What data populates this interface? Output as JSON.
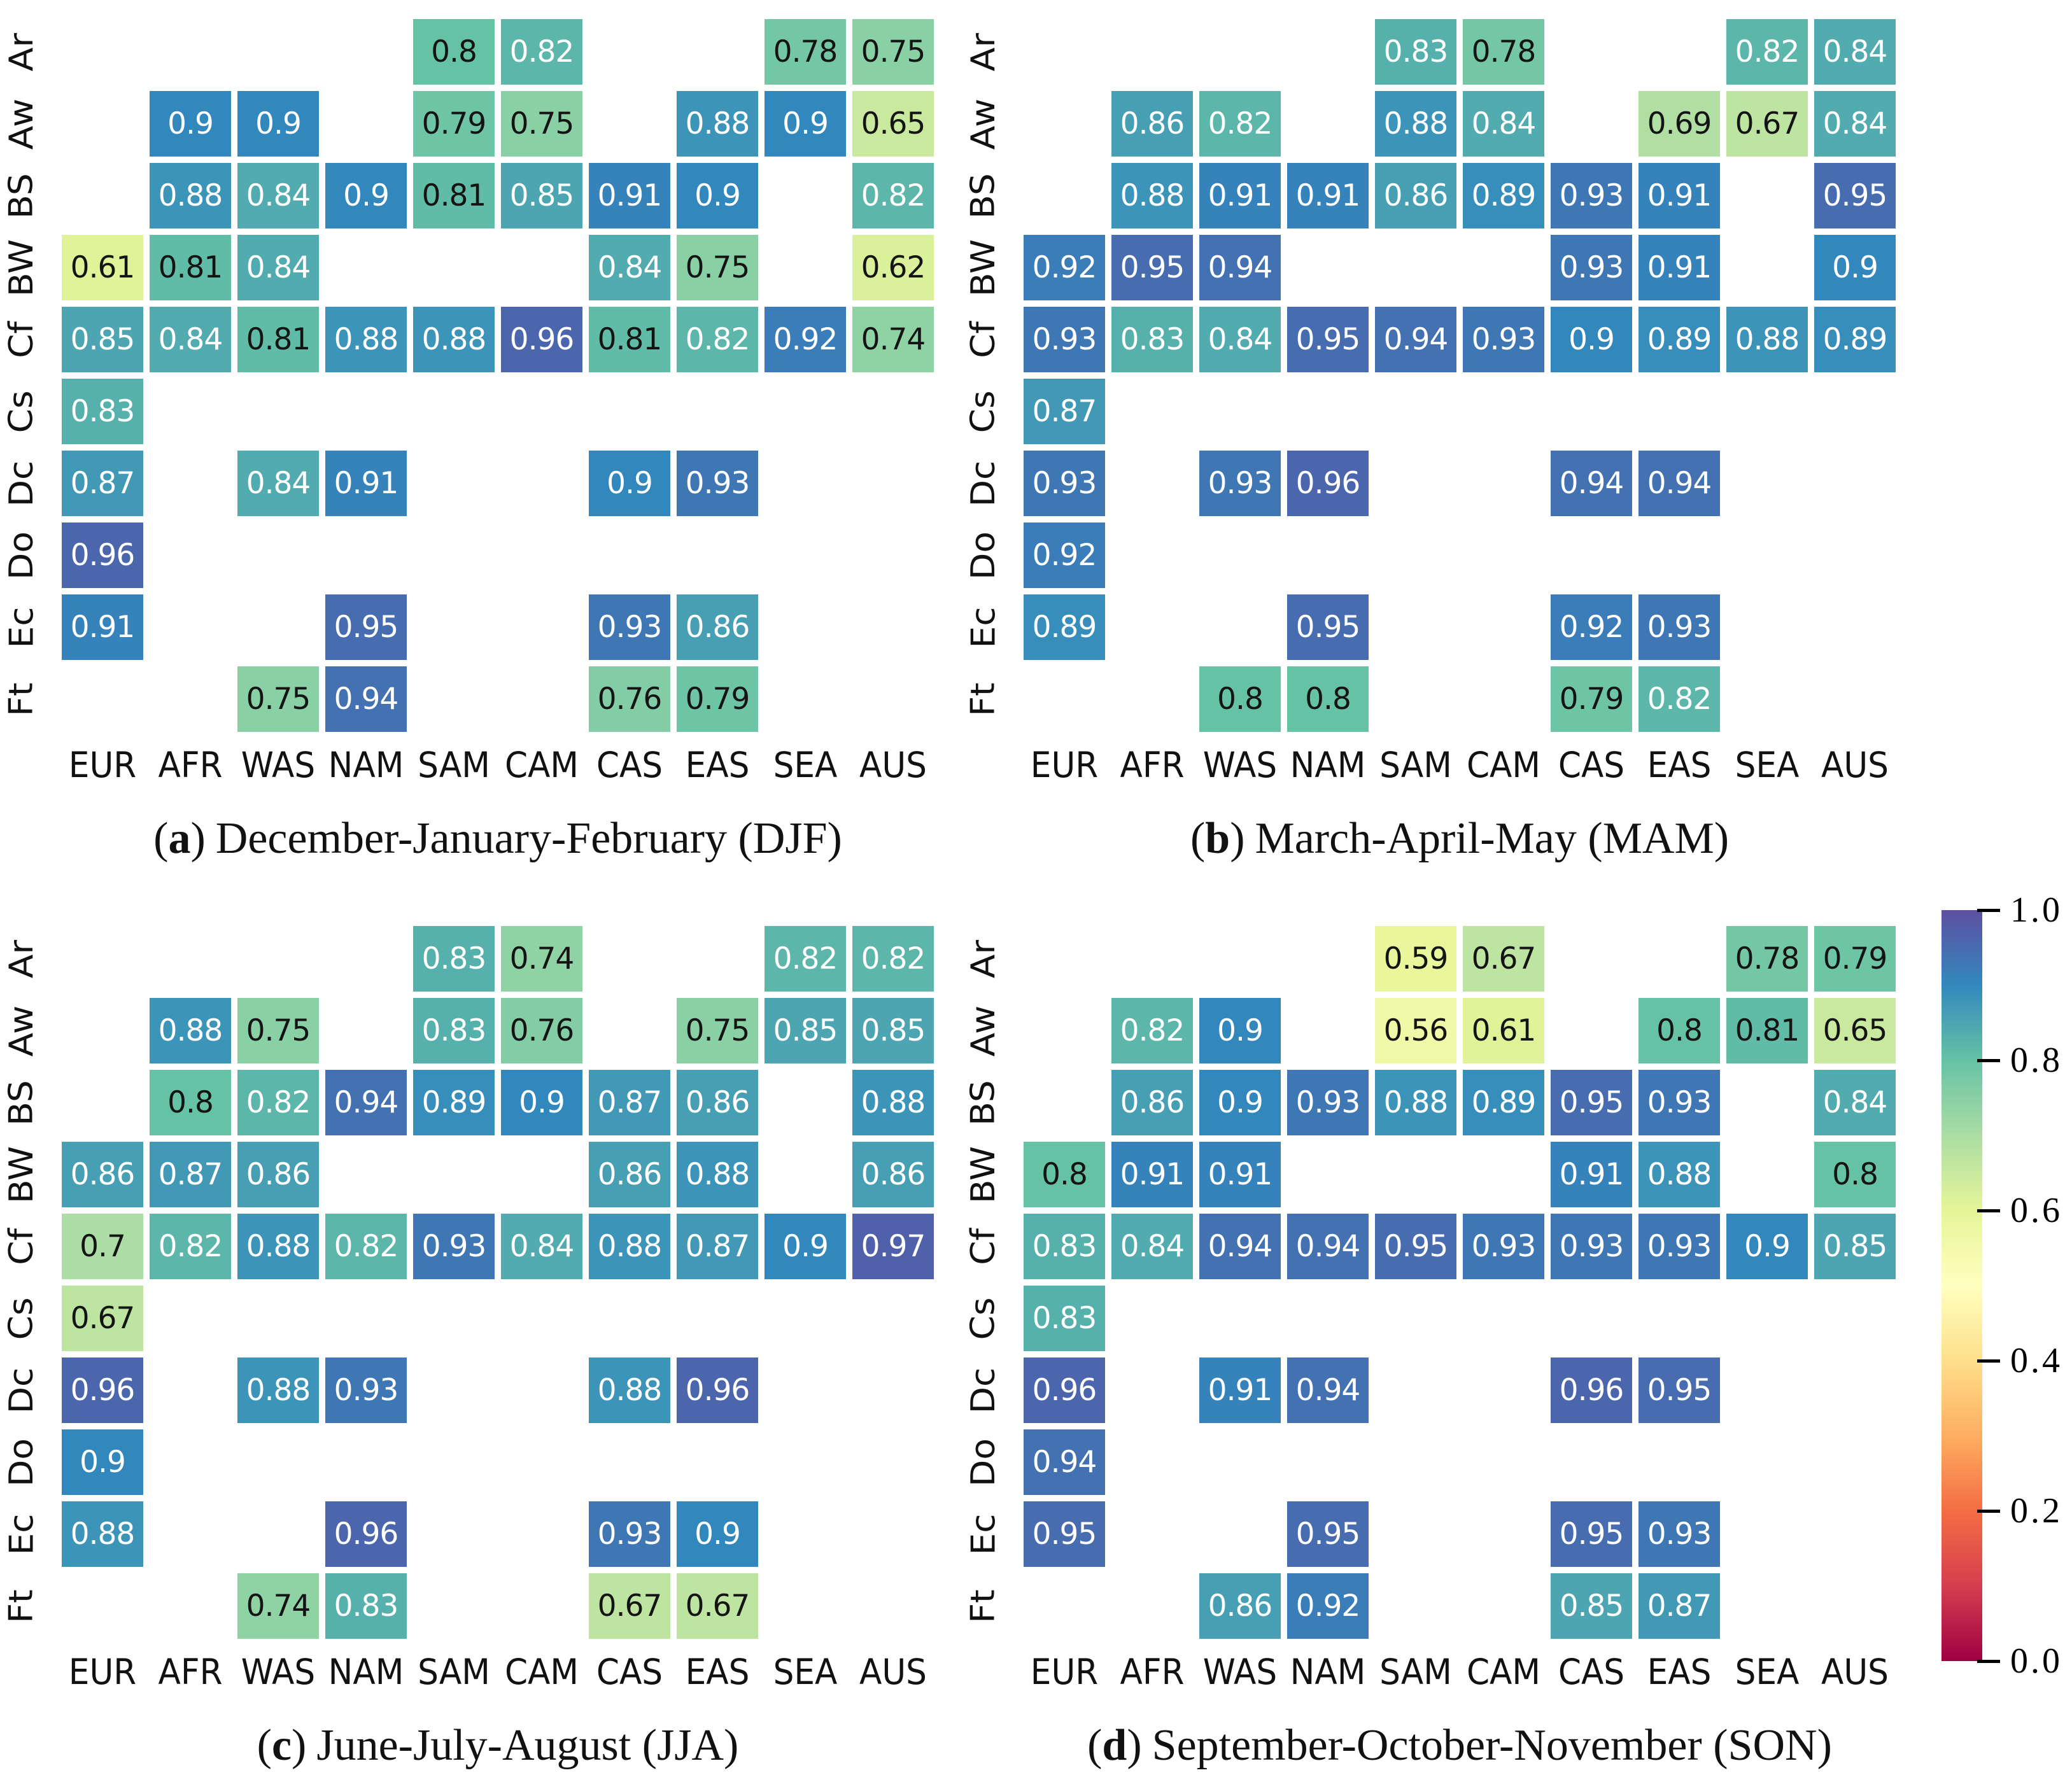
{
  "axis": {
    "row_labels": [
      "Ar",
      "Aw",
      "BS",
      "BW",
      "Cf",
      "Cs",
      "Dc",
      "Do",
      "Ec",
      "Ft"
    ],
    "col_labels": [
      "EUR",
      "AFR",
      "WAS",
      "NAM",
      "SAM",
      "CAM",
      "CAS",
      "EAS",
      "SEA",
      "AUS"
    ]
  },
  "colorbar": {
    "tick_labels": [
      "1.0",
      "0.8",
      "0.6",
      "0.4",
      "0.2",
      "0.0"
    ],
    "range": [
      0.0,
      1.0
    ],
    "colormap": "Spectral",
    "anchors": [
      "#9e0142",
      "#d53e4f",
      "#f46d43",
      "#fdae61",
      "#fee08b",
      "#ffffbf",
      "#e6f598",
      "#abdda4",
      "#66c2a5",
      "#3288bd",
      "#5e4fa2"
    ]
  },
  "chart_data": [
    {
      "type": "heatmap",
      "panel": "a",
      "caption": {
        "open": "(",
        "letter": "a",
        "close": ")",
        "text": "December-January-February (DJF)"
      },
      "x": [
        "EUR",
        "AFR",
        "WAS",
        "NAM",
        "SAM",
        "CAM",
        "CAS",
        "EAS",
        "SEA",
        "AUS"
      ],
      "y": [
        "Ar",
        "Aw",
        "BS",
        "BW",
        "Cf",
        "Cs",
        "Dc",
        "Do",
        "Ec",
        "Ft"
      ],
      "values": [
        [
          null,
          null,
          null,
          null,
          0.8,
          0.82,
          null,
          null,
          0.78,
          0.75
        ],
        [
          null,
          0.9,
          0.9,
          null,
          0.79,
          0.75,
          null,
          0.88,
          0.9,
          0.65
        ],
        [
          null,
          0.88,
          0.84,
          0.9,
          0.81,
          0.85,
          0.91,
          0.9,
          null,
          0.82
        ],
        [
          0.61,
          0.81,
          0.84,
          null,
          null,
          null,
          0.84,
          0.75,
          null,
          0.62
        ],
        [
          0.85,
          0.84,
          0.81,
          0.88,
          0.88,
          0.96,
          0.81,
          0.82,
          0.92,
          0.74
        ],
        [
          0.83,
          null,
          null,
          null,
          null,
          null,
          null,
          null,
          null,
          null
        ],
        [
          0.87,
          null,
          0.84,
          0.91,
          null,
          null,
          0.9,
          0.93,
          null,
          null
        ],
        [
          0.96,
          null,
          null,
          null,
          null,
          null,
          null,
          null,
          null,
          null
        ],
        [
          0.91,
          null,
          null,
          0.95,
          null,
          null,
          0.93,
          0.86,
          null,
          null
        ],
        [
          null,
          null,
          0.75,
          0.94,
          null,
          null,
          0.76,
          0.79,
          null,
          null
        ]
      ]
    },
    {
      "type": "heatmap",
      "panel": "b",
      "caption": {
        "open": "(",
        "letter": "b",
        "close": ")",
        "text": "March-April-May (MAM)"
      },
      "x": [
        "EUR",
        "AFR",
        "WAS",
        "NAM",
        "SAM",
        "CAM",
        "CAS",
        "EAS",
        "SEA",
        "AUS"
      ],
      "y": [
        "Ar",
        "Aw",
        "BS",
        "BW",
        "Cf",
        "Cs",
        "Dc",
        "Do",
        "Ec",
        "Ft"
      ],
      "values": [
        [
          null,
          null,
          null,
          null,
          0.83,
          0.78,
          null,
          null,
          0.82,
          0.84
        ],
        [
          null,
          0.86,
          0.82,
          null,
          0.88,
          0.84,
          null,
          0.69,
          0.67,
          0.84
        ],
        [
          null,
          0.88,
          0.91,
          0.91,
          0.86,
          0.89,
          0.93,
          0.91,
          null,
          0.95
        ],
        [
          0.92,
          0.95,
          0.94,
          null,
          null,
          null,
          0.93,
          0.91,
          null,
          0.9
        ],
        [
          0.93,
          0.83,
          0.84,
          0.95,
          0.94,
          0.93,
          0.9,
          0.89,
          0.88,
          0.89
        ],
        [
          0.87,
          null,
          null,
          null,
          null,
          null,
          null,
          null,
          null,
          null
        ],
        [
          0.93,
          null,
          0.93,
          0.96,
          null,
          null,
          0.94,
          0.94,
          null,
          null
        ],
        [
          0.92,
          null,
          null,
          null,
          null,
          null,
          null,
          null,
          null,
          null
        ],
        [
          0.89,
          null,
          null,
          0.95,
          null,
          null,
          0.92,
          0.93,
          null,
          null
        ],
        [
          null,
          null,
          0.8,
          0.8,
          null,
          null,
          0.79,
          0.82,
          null,
          null
        ]
      ]
    },
    {
      "type": "heatmap",
      "panel": "c",
      "caption": {
        "open": "(",
        "letter": "c",
        "close": ")",
        "text": "June-July-August (JJA)"
      },
      "x": [
        "EUR",
        "AFR",
        "WAS",
        "NAM",
        "SAM",
        "CAM",
        "CAS",
        "EAS",
        "SEA",
        "AUS"
      ],
      "y": [
        "Ar",
        "Aw",
        "BS",
        "BW",
        "Cf",
        "Cs",
        "Dc",
        "Do",
        "Ec",
        "Ft"
      ],
      "values": [
        [
          null,
          null,
          null,
          null,
          0.83,
          0.74,
          null,
          null,
          0.82,
          0.82
        ],
        [
          null,
          0.88,
          0.75,
          null,
          0.83,
          0.76,
          null,
          0.75,
          0.85,
          0.85
        ],
        [
          null,
          0.8,
          0.82,
          0.94,
          0.89,
          0.9,
          0.87,
          0.86,
          null,
          0.88
        ],
        [
          0.86,
          0.87,
          0.86,
          null,
          null,
          null,
          0.86,
          0.88,
          null,
          0.86
        ],
        [
          0.7,
          0.82,
          0.88,
          0.82,
          0.93,
          0.84,
          0.88,
          0.87,
          0.9,
          0.97
        ],
        [
          0.67,
          null,
          null,
          null,
          null,
          null,
          null,
          null,
          null,
          null
        ],
        [
          0.96,
          null,
          0.88,
          0.93,
          null,
          null,
          0.88,
          0.96,
          null,
          null
        ],
        [
          0.9,
          null,
          null,
          null,
          null,
          null,
          null,
          null,
          null,
          null
        ],
        [
          0.88,
          null,
          null,
          0.96,
          null,
          null,
          0.93,
          0.9,
          null,
          null
        ],
        [
          null,
          null,
          0.74,
          0.83,
          null,
          null,
          0.67,
          0.67,
          null,
          null
        ]
      ]
    },
    {
      "type": "heatmap",
      "panel": "d",
      "caption": {
        "open": "(",
        "letter": "d",
        "close": ")",
        "text": "September-October-November (SON)"
      },
      "x": [
        "EUR",
        "AFR",
        "WAS",
        "NAM",
        "SAM",
        "CAM",
        "CAS",
        "EAS",
        "SEA",
        "AUS"
      ],
      "y": [
        "Ar",
        "Aw",
        "BS",
        "BW",
        "Cf",
        "Cs",
        "Dc",
        "Do",
        "Ec",
        "Ft"
      ],
      "values": [
        [
          null,
          null,
          null,
          null,
          0.59,
          0.67,
          null,
          null,
          0.78,
          0.79
        ],
        [
          null,
          0.82,
          0.9,
          null,
          0.56,
          0.61,
          null,
          0.8,
          0.81,
          0.65
        ],
        [
          null,
          0.86,
          0.9,
          0.93,
          0.88,
          0.89,
          0.95,
          0.93,
          null,
          0.84
        ],
        [
          0.8,
          0.91,
          0.91,
          null,
          null,
          null,
          0.91,
          0.88,
          null,
          0.8
        ],
        [
          0.83,
          0.84,
          0.94,
          0.94,
          0.95,
          0.93,
          0.93,
          0.93,
          0.9,
          0.85
        ],
        [
          0.83,
          null,
          null,
          null,
          null,
          null,
          null,
          null,
          null,
          null
        ],
        [
          0.96,
          null,
          0.91,
          0.94,
          null,
          null,
          0.96,
          0.95,
          null,
          null
        ],
        [
          0.94,
          null,
          null,
          null,
          null,
          null,
          null,
          null,
          null,
          null
        ],
        [
          0.95,
          null,
          null,
          0.95,
          null,
          null,
          0.95,
          0.93,
          null,
          null
        ],
        [
          null,
          null,
          0.86,
          0.92,
          null,
          null,
          0.85,
          0.87,
          null,
          null
        ]
      ]
    }
  ]
}
